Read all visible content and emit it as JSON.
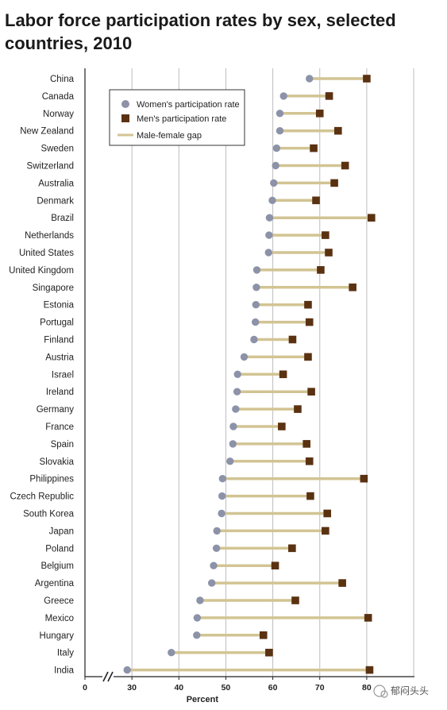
{
  "chart_data": {
    "type": "dumbbell",
    "title_line1": "Labor force participation rates by sex, selected",
    "title_line2": "countries, 2010",
    "xlabel": "Percent",
    "axis_break": "//",
    "xlim": [
      20,
      90
    ],
    "xticks": [
      0,
      30,
      40,
      50,
      60,
      70,
      80
    ],
    "legend": {
      "position": "top-left",
      "women": "Women's participation rate",
      "men": "Men's participation rate",
      "gap": "Male-female gap"
    },
    "colors": {
      "women": "#8c92a8",
      "men": "#5a3212",
      "gap": "#d2c493",
      "grid": "#bdbdbd"
    },
    "categories": [
      "China",
      "Canada",
      "Norway",
      "New Zealand",
      "Sweden",
      "Switzerland",
      "Australia",
      "Denmark",
      "Brazil",
      "Netherlands",
      "United States",
      "United Kingdom",
      "Singapore",
      "Estonia",
      "Portugal",
      "Finland",
      "Austria",
      "Israel",
      "Ireland",
      "Germany",
      "France",
      "Spain",
      "Slovakia",
      "Philippines",
      "Czech Republic",
      "South Korea",
      "Japan",
      "Poland",
      "Belgium",
      "Argentina",
      "Greece",
      "Mexico",
      "Hungary",
      "Italy",
      "India"
    ],
    "series": [
      {
        "name": "Women's participation rate",
        "values": [
          67.8,
          62.3,
          61.5,
          61.5,
          60.8,
          60.6,
          60.2,
          59.9,
          59.3,
          59.2,
          59.1,
          56.6,
          56.5,
          56.4,
          56.3,
          56.0,
          53.9,
          52.5,
          52.4,
          52.1,
          51.6,
          51.5,
          50.9,
          49.3,
          49.2,
          49.1,
          48.1,
          48.0,
          47.4,
          47.0,
          44.5,
          43.9,
          43.8,
          38.4,
          29.0
        ]
      },
      {
        "name": "Men's participation rate",
        "values": [
          80.0,
          72.0,
          70.0,
          73.9,
          68.7,
          75.4,
          73.1,
          69.2,
          81.0,
          71.2,
          71.9,
          70.2,
          77.0,
          67.5,
          67.8,
          64.2,
          67.5,
          62.2,
          68.2,
          65.3,
          61.9,
          67.2,
          67.8,
          79.4,
          68.0,
          71.6,
          71.2,
          64.1,
          60.5,
          74.8,
          64.8,
          80.3,
          58.0,
          59.2,
          80.6
        ]
      }
    ]
  },
  "watermark": "郁闷头头"
}
